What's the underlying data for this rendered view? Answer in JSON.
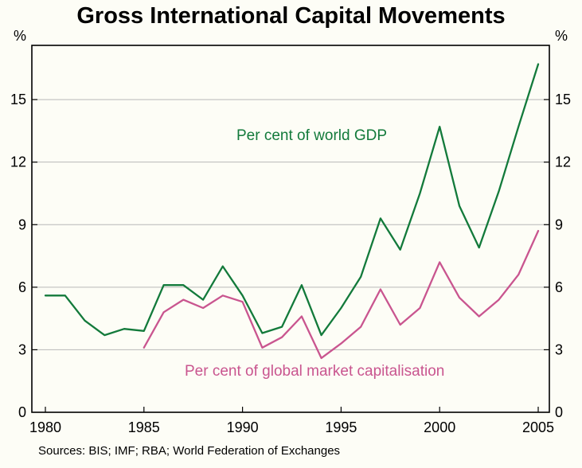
{
  "title": "Gross International Capital Movements",
  "sources": "Sources: BIS; IMF; RBA; World Federation of Exchanges",
  "chart_data": {
    "type": "line",
    "unit_label": "%",
    "xlim": [
      1980,
      2005
    ],
    "ylim": [
      0,
      17.6
    ],
    "x_tick_years": [
      1980,
      1985,
      1990,
      1995,
      2000,
      2005
    ],
    "x_tick_labels": [
      "1980",
      "1985",
      "1990",
      "1995",
      "2000",
      "2005"
    ],
    "y_ticks": [
      0,
      3,
      6,
      9,
      12,
      15
    ],
    "grid": "horizontal",
    "legend_position": "in-plot-annotations",
    "series": [
      {
        "name": "Per cent of world GDP",
        "color": "#137a3b",
        "start_year": 1980,
        "values": [
          5.6,
          5.6,
          4.4,
          3.7,
          4.0,
          3.9,
          6.1,
          6.1,
          5.4,
          7.0,
          5.6,
          3.8,
          4.1,
          6.1,
          3.7,
          5.0,
          6.5,
          9.3,
          7.8,
          10.5,
          13.7,
          9.9,
          7.9,
          10.6,
          13.7,
          16.7
        ]
      },
      {
        "name": "Per cent of global market capitalisation",
        "color": "#c9558f",
        "start_year": 1985,
        "values": [
          3.1,
          4.8,
          5.4,
          5.0,
          5.6,
          5.3,
          3.1,
          3.6,
          4.6,
          2.6,
          3.3,
          4.1,
          5.9,
          4.2,
          5.0,
          7.2,
          5.5,
          4.6,
          5.4,
          6.6,
          8.7
        ]
      }
    ],
    "annotations": [
      {
        "text": "Per cent of world GDP",
        "series_index": 0
      },
      {
        "text": "Per cent of global market capitalisation",
        "series_index": 1
      }
    ]
  }
}
